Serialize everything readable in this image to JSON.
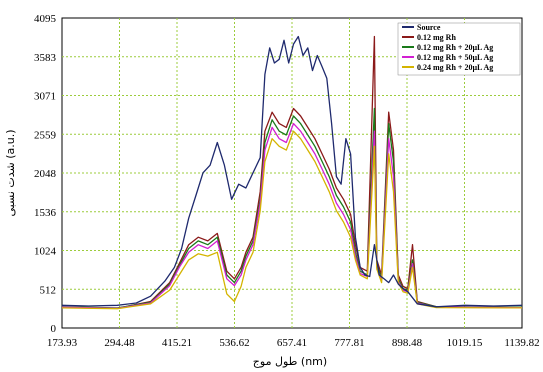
{
  "chart_data": {
    "type": "line",
    "xlabel": "طول موج (nm)",
    "ylabel": "شدت نسبی (a.u.)",
    "x_ticks": [
      "173.93",
      "294.48",
      "415.21",
      "536.62",
      "657.41",
      "777.81",
      "898.48",
      "1019.15",
      "1139.82"
    ],
    "y_ticks": [
      "0",
      "512",
      "1024",
      "1536",
      "2048",
      "2559",
      "3071",
      "3583",
      "4095"
    ],
    "xlim": [
      173.93,
      1139.82
    ],
    "ylim": [
      0,
      4095
    ],
    "grid": true,
    "legend_position": "top-right",
    "series": [
      {
        "name": "Source",
        "color": "#1f2a6e",
        "points": [
          [
            173.93,
            300
          ],
          [
            230,
            290
          ],
          [
            290,
            300
          ],
          [
            330,
            330
          ],
          [
            360,
            420
          ],
          [
            390,
            620
          ],
          [
            410,
            800
          ],
          [
            425,
            1050
          ],
          [
            440,
            1450
          ],
          [
            455,
            1750
          ],
          [
            470,
            2050
          ],
          [
            485,
            2150
          ],
          [
            500,
            2450
          ],
          [
            515,
            2150
          ],
          [
            530,
            1700
          ],
          [
            545,
            1900
          ],
          [
            560,
            1850
          ],
          [
            575,
            2050
          ],
          [
            590,
            2250
          ],
          [
            600,
            3350
          ],
          [
            610,
            3700
          ],
          [
            620,
            3500
          ],
          [
            630,
            3550
          ],
          [
            640,
            3800
          ],
          [
            650,
            3500
          ],
          [
            660,
            3750
          ],
          [
            670,
            3850
          ],
          [
            680,
            3600
          ],
          [
            690,
            3700
          ],
          [
            700,
            3400
          ],
          [
            710,
            3600
          ],
          [
            720,
            3450
          ],
          [
            730,
            3300
          ],
          [
            740,
            2700
          ],
          [
            750,
            2000
          ],
          [
            760,
            1900
          ],
          [
            770,
            2500
          ],
          [
            780,
            2300
          ],
          [
            790,
            1200
          ],
          [
            800,
            800
          ],
          [
            810,
            700
          ],
          [
            820,
            680
          ],
          [
            830,
            1100
          ],
          [
            840,
            700
          ],
          [
            850,
            650
          ],
          [
            860,
            600
          ],
          [
            870,
            700
          ],
          [
            880,
            580
          ],
          [
            890,
            520
          ],
          [
            900,
            480
          ],
          [
            920,
            320
          ],
          [
            960,
            280
          ],
          [
            1020,
            300
          ],
          [
            1080,
            290
          ],
          [
            1139.82,
            300
          ]
        ]
      },
      {
        "name": "0.12 mg Rh",
        "color": "#8b1a1a",
        "points": [
          [
            173.93,
            270
          ],
          [
            290,
            260
          ],
          [
            360,
            350
          ],
          [
            400,
            600
          ],
          [
            420,
            850
          ],
          [
            440,
            1100
          ],
          [
            460,
            1200
          ],
          [
            480,
            1150
          ],
          [
            500,
            1250
          ],
          [
            520,
            750
          ],
          [
            536,
            650
          ],
          [
            550,
            800
          ],
          [
            560,
            1000
          ],
          [
            575,
            1200
          ],
          [
            590,
            1800
          ],
          [
            600,
            2600
          ],
          [
            615,
            2850
          ],
          [
            630,
            2700
          ],
          [
            645,
            2650
          ],
          [
            660,
            2900
          ],
          [
            675,
            2800
          ],
          [
            690,
            2650
          ],
          [
            705,
            2500
          ],
          [
            720,
            2300
          ],
          [
            735,
            2100
          ],
          [
            750,
            1850
          ],
          [
            765,
            1700
          ],
          [
            780,
            1500
          ],
          [
            790,
            1100
          ],
          [
            800,
            800
          ],
          [
            815,
            750
          ],
          [
            830,
            3850
          ],
          [
            835,
            900
          ],
          [
            845,
            700
          ],
          [
            860,
            2850
          ],
          [
            870,
            2350
          ],
          [
            880,
            700
          ],
          [
            890,
            550
          ],
          [
            900,
            520
          ],
          [
            910,
            1100
          ],
          [
            920,
            350
          ],
          [
            960,
            280
          ],
          [
            1139.82,
            270
          ]
        ]
      },
      {
        "name": "0.12 mg Rh + 20µL Ag",
        "color": "#1a7a1a",
        "points": [
          [
            173.93,
            280
          ],
          [
            290,
            265
          ],
          [
            360,
            340
          ],
          [
            400,
            580
          ],
          [
            420,
            820
          ],
          [
            440,
            1050
          ],
          [
            460,
            1150
          ],
          [
            480,
            1100
          ],
          [
            500,
            1200
          ],
          [
            520,
            700
          ],
          [
            536,
            600
          ],
          [
            550,
            750
          ],
          [
            560,
            950
          ],
          [
            575,
            1150
          ],
          [
            590,
            1700
          ],
          [
            600,
            2450
          ],
          [
            615,
            2750
          ],
          [
            630,
            2600
          ],
          [
            645,
            2550
          ],
          [
            660,
            2800
          ],
          [
            675,
            2700
          ],
          [
            690,
            2550
          ],
          [
            705,
            2400
          ],
          [
            720,
            2200
          ],
          [
            735,
            2000
          ],
          [
            750,
            1750
          ],
          [
            765,
            1600
          ],
          [
            780,
            1400
          ],
          [
            790,
            1000
          ],
          [
            800,
            750
          ],
          [
            815,
            700
          ],
          [
            830,
            2900
          ],
          [
            835,
            850
          ],
          [
            845,
            650
          ],
          [
            860,
            2700
          ],
          [
            870,
            2200
          ],
          [
            880,
            650
          ],
          [
            890,
            520
          ],
          [
            900,
            500
          ],
          [
            910,
            900
          ],
          [
            920,
            340
          ],
          [
            960,
            280
          ],
          [
            1139.82,
            275
          ]
        ]
      },
      {
        "name": "0.12 mg Rh + 50µL Ag",
        "color": "#d21fd2",
        "points": [
          [
            173.93,
            275
          ],
          [
            290,
            260
          ],
          [
            360,
            330
          ],
          [
            400,
            560
          ],
          [
            420,
            800
          ],
          [
            440,
            1000
          ],
          [
            460,
            1100
          ],
          [
            480,
            1050
          ],
          [
            500,
            1150
          ],
          [
            520,
            650
          ],
          [
            536,
            560
          ],
          [
            550,
            700
          ],
          [
            560,
            900
          ],
          [
            575,
            1100
          ],
          [
            590,
            1650
          ],
          [
            600,
            2350
          ],
          [
            615,
            2650
          ],
          [
            630,
            2500
          ],
          [
            645,
            2450
          ],
          [
            660,
            2700
          ],
          [
            675,
            2600
          ],
          [
            690,
            2450
          ],
          [
            705,
            2300
          ],
          [
            720,
            2100
          ],
          [
            735,
            1900
          ],
          [
            750,
            1650
          ],
          [
            765,
            1500
          ],
          [
            780,
            1300
          ],
          [
            790,
            950
          ],
          [
            800,
            720
          ],
          [
            815,
            680
          ],
          [
            830,
            2600
          ],
          [
            835,
            800
          ],
          [
            845,
            630
          ],
          [
            860,
            2500
          ],
          [
            870,
            2000
          ],
          [
            880,
            620
          ],
          [
            890,
            500
          ],
          [
            900,
            480
          ],
          [
            910,
            850
          ],
          [
            920,
            330
          ],
          [
            960,
            275
          ],
          [
            1139.82,
            270
          ]
        ]
      },
      {
        "name": "0.24 mg Rh + 20µL Ag",
        "color": "#d4b400",
        "points": [
          [
            173.93,
            265
          ],
          [
            290,
            255
          ],
          [
            360,
            320
          ],
          [
            400,
            500
          ],
          [
            420,
            700
          ],
          [
            440,
            900
          ],
          [
            460,
            980
          ],
          [
            480,
            950
          ],
          [
            500,
            1000
          ],
          [
            520,
            450
          ],
          [
            536,
            350
          ],
          [
            550,
            550
          ],
          [
            560,
            800
          ],
          [
            575,
            1000
          ],
          [
            590,
            1550
          ],
          [
            600,
            2200
          ],
          [
            615,
            2500
          ],
          [
            630,
            2400
          ],
          [
            645,
            2350
          ],
          [
            660,
            2600
          ],
          [
            675,
            2500
          ],
          [
            690,
            2350
          ],
          [
            705,
            2200
          ],
          [
            720,
            2000
          ],
          [
            735,
            1800
          ],
          [
            750,
            1550
          ],
          [
            765,
            1400
          ],
          [
            780,
            1200
          ],
          [
            790,
            900
          ],
          [
            800,
            700
          ],
          [
            815,
            650
          ],
          [
            830,
            2400
          ],
          [
            835,
            780
          ],
          [
            845,
            600
          ],
          [
            860,
            2300
          ],
          [
            870,
            1800
          ],
          [
            880,
            600
          ],
          [
            890,
            480
          ],
          [
            900,
            460
          ],
          [
            910,
            800
          ],
          [
            920,
            320
          ],
          [
            960,
            270
          ],
          [
            1139.82,
            265
          ]
        ]
      }
    ]
  }
}
